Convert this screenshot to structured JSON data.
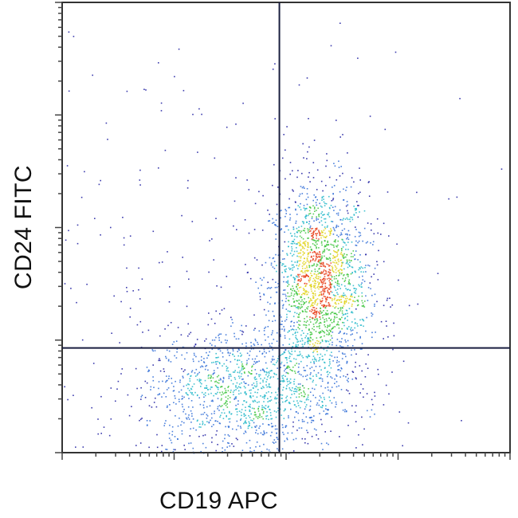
{
  "chart_data": {
    "type": "scatter",
    "subtype": "flow cytometry density dot plot",
    "xlabel": "CD19 APC",
    "ylabel": "CD24 FITC",
    "x_scale": "log (4 decades, tick labels not printed)",
    "y_scale": "log (4 decades, tick labels not printed)",
    "xlim_decades": [
      0,
      4
    ],
    "ylim_decades": [
      0,
      4
    ],
    "quadrant_gate": {
      "x": 1.94,
      "y": 0.93
    },
    "grid": false,
    "legend": "none",
    "density_colors": [
      "#1a1aa0",
      "#2d6bd6",
      "#22b7c9",
      "#3cc43c",
      "#e0d21a",
      "#e8401a"
    ],
    "populations": [
      {
        "quadrant": "upper-right (CD19+ CD24+)",
        "center": [
          2.29,
          1.5
        ],
        "spread": [
          0.22,
          0.45
        ],
        "events": 1900
      },
      {
        "quadrant": "lower-left / lower-right (CD19 dim, CD24 low)",
        "center": [
          1.6,
          0.55
        ],
        "spread": [
          0.45,
          0.28
        ],
        "events": 1200
      },
      {
        "quadrant": "scattered background",
        "center": [
          1.6,
          1.6
        ],
        "spread": [
          1.1,
          1.1
        ],
        "events": 250
      }
    ]
  }
}
